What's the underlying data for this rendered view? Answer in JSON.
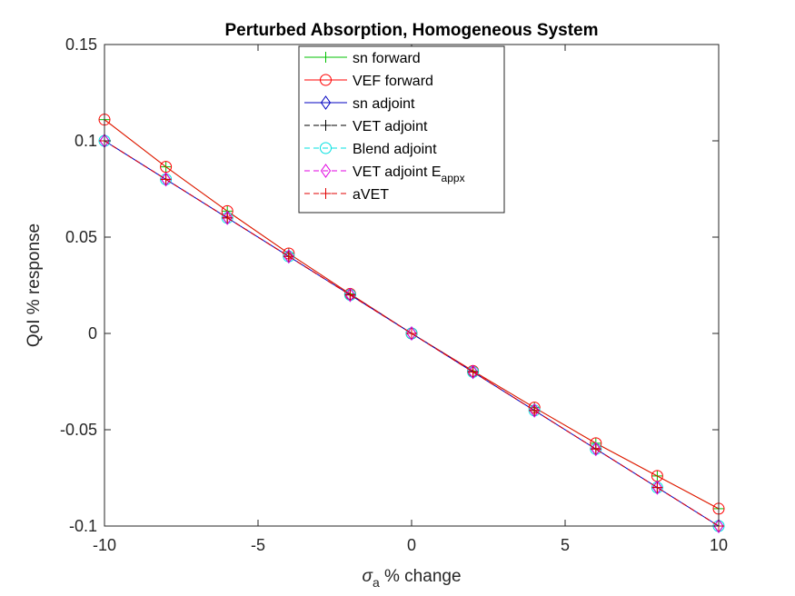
{
  "chart_data": {
    "type": "line",
    "title": "Perturbed Absorption, Homogeneous System",
    "xlabel_main": "σ",
    "xlabel_sub": "a",
    "xlabel_rest": " % change",
    "ylabel": "QoI % response",
    "xlim": [
      -10,
      10
    ],
    "ylim": [
      -0.1,
      0.15
    ],
    "xticks": [
      -10,
      -5,
      0,
      5,
      10
    ],
    "xtick_labels": [
      "-10",
      "-5",
      "0",
      "5",
      "10"
    ],
    "yticks": [
      -0.1,
      -0.05,
      0,
      0.05,
      0.1,
      0.15
    ],
    "ytick_labels": [
      "-0.1",
      "-0.05",
      "0",
      "0.05",
      "0.1",
      "0.15"
    ],
    "grid": false,
    "legend_position": "top-center",
    "x": [
      -10,
      -8,
      -6,
      -4,
      -2,
      0,
      2,
      4,
      6,
      8,
      10
    ],
    "series": [
      {
        "name": "sn forward",
        "color": "#00c000",
        "dash": "solid",
        "marker": "plus",
        "values": [
          0.111,
          0.0865,
          0.0635,
          0.0415,
          0.0205,
          0,
          -0.0195,
          -0.0385,
          -0.057,
          -0.074,
          -0.091
        ]
      },
      {
        "name": "VEF forward",
        "color": "#ff0000",
        "dash": "solid",
        "marker": "circle",
        "values": [
          0.111,
          0.0865,
          0.0635,
          0.0415,
          0.0205,
          0,
          -0.0195,
          -0.0385,
          -0.057,
          -0.074,
          -0.091
        ]
      },
      {
        "name": "sn adjoint",
        "color": "#0000c0",
        "dash": "solid",
        "marker": "diamond",
        "values": [
          0.1,
          0.08,
          0.06,
          0.04,
          0.02,
          0,
          -0.02,
          -0.04,
          -0.06,
          -0.08,
          -0.1
        ]
      },
      {
        "name": "VET adjoint",
        "color": "#000000",
        "dash": "dashed",
        "marker": "plus",
        "values": [
          0.1,
          0.08,
          0.06,
          0.04,
          0.02,
          0,
          -0.02,
          -0.04,
          -0.06,
          -0.08,
          -0.1
        ]
      },
      {
        "name": "Blend adjoint",
        "color": "#00e0e0",
        "dash": "dashed",
        "marker": "circle",
        "values": [
          0.1,
          0.08,
          0.06,
          0.04,
          0.02,
          0,
          -0.02,
          -0.04,
          -0.06,
          -0.08,
          -0.1
        ]
      },
      {
        "name": "VET adjoint E",
        "name_sub": "appx",
        "color": "#e000e0",
        "dash": "dashed",
        "marker": "diamond",
        "values": [
          0.1,
          0.08,
          0.06,
          0.04,
          0.02,
          0,
          -0.02,
          -0.04,
          -0.06,
          -0.08,
          -0.1
        ]
      },
      {
        "name": "aVET",
        "color": "#e00000",
        "dash": "dashed",
        "marker": "plus",
        "values": [
          0.1,
          0.08,
          0.06,
          0.04,
          0.02,
          0,
          -0.02,
          -0.04,
          -0.06,
          -0.08,
          -0.1
        ]
      }
    ]
  }
}
